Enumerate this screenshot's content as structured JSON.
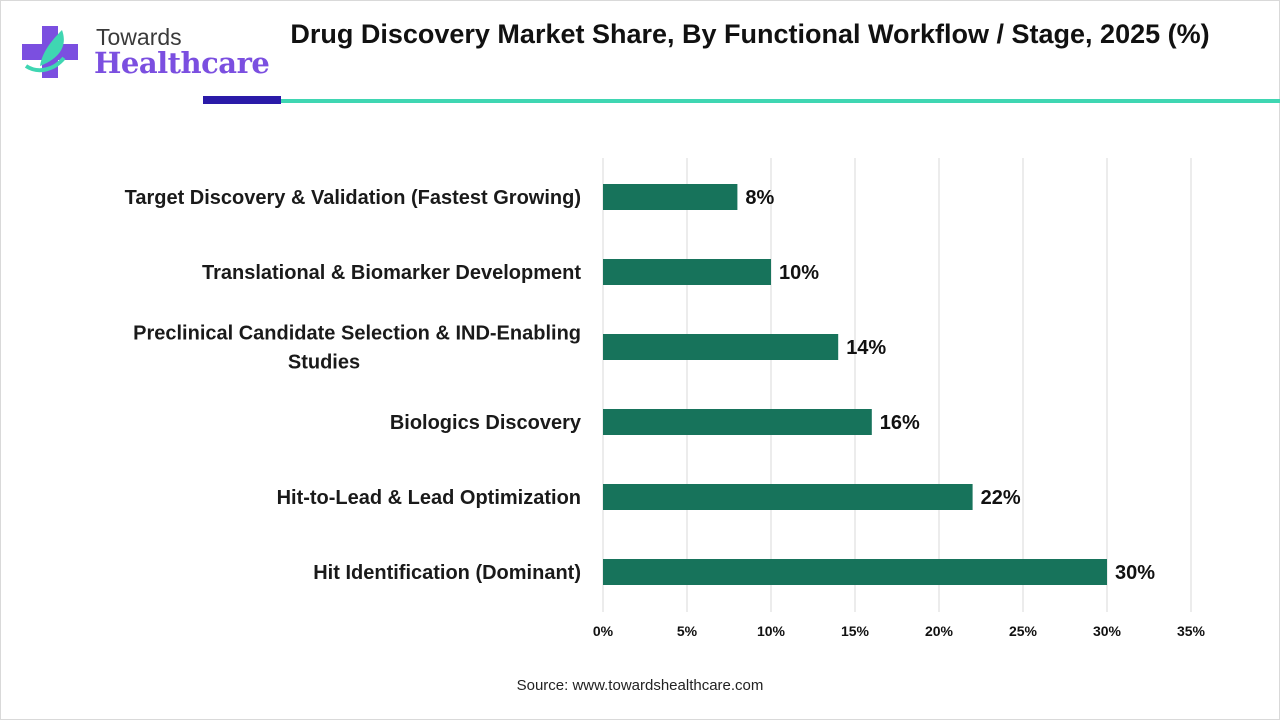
{
  "brand": {
    "line1": "Towards",
    "line2": "Healthcare",
    "colors": {
      "primary": "#7b4fe0",
      "accent": "#3fd6b2",
      "dark": "#2a1aa8"
    }
  },
  "source": "Source: www.towardshealthcare.com",
  "chart_data": {
    "type": "bar",
    "orientation": "horizontal",
    "title": "Drug Discovery Market Share, By Functional Workflow / Stage, 2025 (%)",
    "categories": [
      [
        "Target Discovery & Validation (Fastest Growing)"
      ],
      [
        "Translational & Biomarker Development"
      ],
      [
        "Preclinical Candidate Selection & IND-Enabling",
        "Studies"
      ],
      [
        "Biologics Discovery"
      ],
      [
        "Hit-to-Lead & Lead Optimization"
      ],
      [
        "Hit Identification (Dominant)"
      ]
    ],
    "values": [
      8,
      10,
      14,
      16,
      22,
      30
    ],
    "data_labels": [
      "8%",
      "10%",
      "14%",
      "16%",
      "22%",
      "30%"
    ],
    "xlim": [
      0,
      35
    ],
    "xticks": [
      0,
      5,
      10,
      15,
      20,
      25,
      30,
      35
    ],
    "xtick_labels": [
      "0%",
      "5%",
      "10%",
      "15%",
      "20%",
      "25%",
      "30%",
      "35%"
    ],
    "grid": "vertical",
    "bar_color": "#17735b"
  }
}
